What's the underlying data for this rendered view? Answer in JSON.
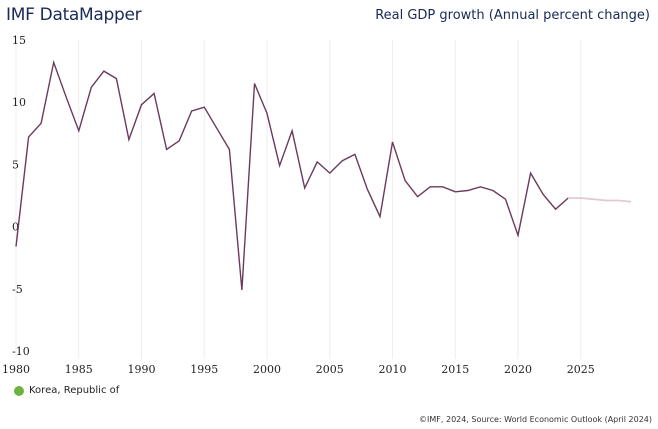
{
  "header": {
    "brand": "IMF DataMapper",
    "chart_title": "Real GDP growth (Annual percent change)"
  },
  "legend": {
    "label": "Korea, Republic of",
    "color": "#6db33f"
  },
  "source": "©IMF, 2024, Source: World Economic Outlook (April 2024)",
  "chart_data": {
    "type": "line",
    "title": "Real GDP growth (Annual percent change)",
    "xlim": [
      1980,
      2029
    ],
    "ylim": [
      -10,
      15
    ],
    "x_ticks": [
      1980,
      1985,
      1990,
      1995,
      2000,
      2005,
      2010,
      2015,
      2020,
      2025
    ],
    "y_ticks": [
      15,
      10,
      5,
      0,
      -5,
      -10
    ],
    "grid": "vertical",
    "line_color": "#6b3a5c",
    "projection_color": "#e2c9d4",
    "projection_start": 2024,
    "series": [
      {
        "name": "Korea, Republic of",
        "x": [
          1980,
          1981,
          1982,
          1983,
          1984,
          1985,
          1986,
          1987,
          1988,
          1989,
          1990,
          1991,
          1992,
          1993,
          1994,
          1995,
          1996,
          1997,
          1998,
          1999,
          2000,
          2001,
          2002,
          2003,
          2004,
          2005,
          2006,
          2007,
          2008,
          2009,
          2010,
          2011,
          2012,
          2013,
          2014,
          2015,
          2016,
          2017,
          2018,
          2019,
          2020,
          2021,
          2022,
          2023,
          2024,
          2025,
          2026,
          2027,
          2028,
          2029
        ],
        "values": [
          -1.6,
          7.2,
          8.3,
          13.2,
          10.4,
          7.7,
          11.2,
          12.5,
          11.9,
          7.0,
          9.8,
          10.7,
          6.2,
          6.9,
          9.3,
          9.6,
          7.9,
          6.2,
          -5.1,
          11.5,
          9.1,
          4.9,
          7.7,
          3.1,
          5.2,
          4.3,
          5.3,
          5.8,
          3.0,
          0.8,
          6.8,
          3.7,
          2.4,
          3.2,
          3.2,
          2.8,
          2.9,
          3.2,
          2.9,
          2.2,
          -0.7,
          4.3,
          2.6,
          1.4,
          2.3,
          2.3,
          2.2,
          2.1,
          2.1,
          2.0
        ]
      }
    ]
  }
}
